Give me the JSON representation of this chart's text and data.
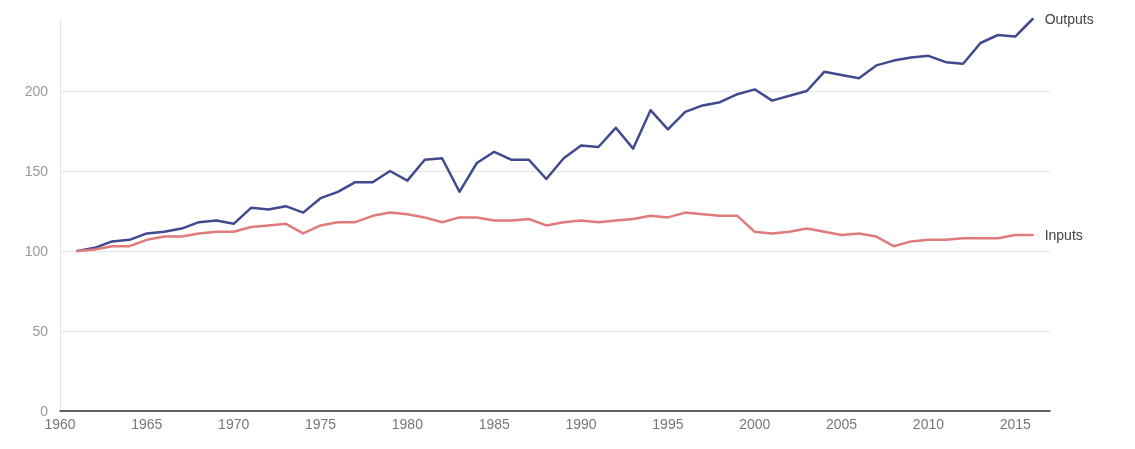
{
  "chart_data": {
    "type": "line",
    "x": [
      1961,
      1962,
      1963,
      1964,
      1965,
      1966,
      1967,
      1968,
      1969,
      1970,
      1971,
      1972,
      1973,
      1974,
      1975,
      1976,
      1977,
      1978,
      1979,
      1980,
      1981,
      1982,
      1983,
      1984,
      1985,
      1986,
      1987,
      1988,
      1989,
      1990,
      1991,
      1992,
      1993,
      1994,
      1995,
      1996,
      1997,
      1998,
      1999,
      2000,
      2001,
      2002,
      2003,
      2004,
      2005,
      2006,
      2007,
      2008,
      2009,
      2010,
      2011,
      2012,
      2013,
      2014,
      2015,
      2016
    ],
    "series": [
      {
        "name": "Outputs",
        "color": "#3f4a8f",
        "values": [
          100,
          102,
          106,
          107,
          111,
          112,
          114,
          118,
          119,
          117,
          127,
          126,
          128,
          124,
          133,
          137,
          143,
          143,
          150,
          144,
          157,
          158,
          137,
          155,
          162,
          157,
          157,
          145,
          158,
          166,
          165,
          177,
          164,
          188,
          176,
          187,
          191,
          193,
          198,
          201,
          194,
          197,
          200,
          212,
          210,
          208,
          216,
          219,
          221,
          222,
          218,
          217,
          230,
          235,
          234,
          245
        ]
      },
      {
        "name": "Inputs",
        "color": "#e07b7b",
        "values": [
          100,
          101,
          103,
          103,
          107,
          109,
          109,
          111,
          112,
          112,
          115,
          116,
          117,
          111,
          116,
          118,
          118,
          122,
          124,
          123,
          121,
          118,
          121,
          121,
          119,
          119,
          120,
          116,
          118,
          119,
          118,
          119,
          120,
          122,
          121,
          124,
          123,
          122,
          122,
          112,
          111,
          112,
          114,
          112,
          110,
          111,
          109,
          103,
          106,
          107,
          107,
          108,
          108,
          108,
          110,
          110
        ]
      }
    ],
    "xlim": [
      1960,
      2017
    ],
    "xticks": [
      1960,
      1965,
      1970,
      1975,
      1980,
      1985,
      1990,
      1995,
      2000,
      2005,
      2010,
      2015
    ],
    "ylim": [
      0,
      245
    ],
    "yticks": [
      0,
      50,
      100,
      150,
      200
    ],
    "grid": "y",
    "legend": false,
    "marker": "none",
    "line_style": "solid"
  }
}
